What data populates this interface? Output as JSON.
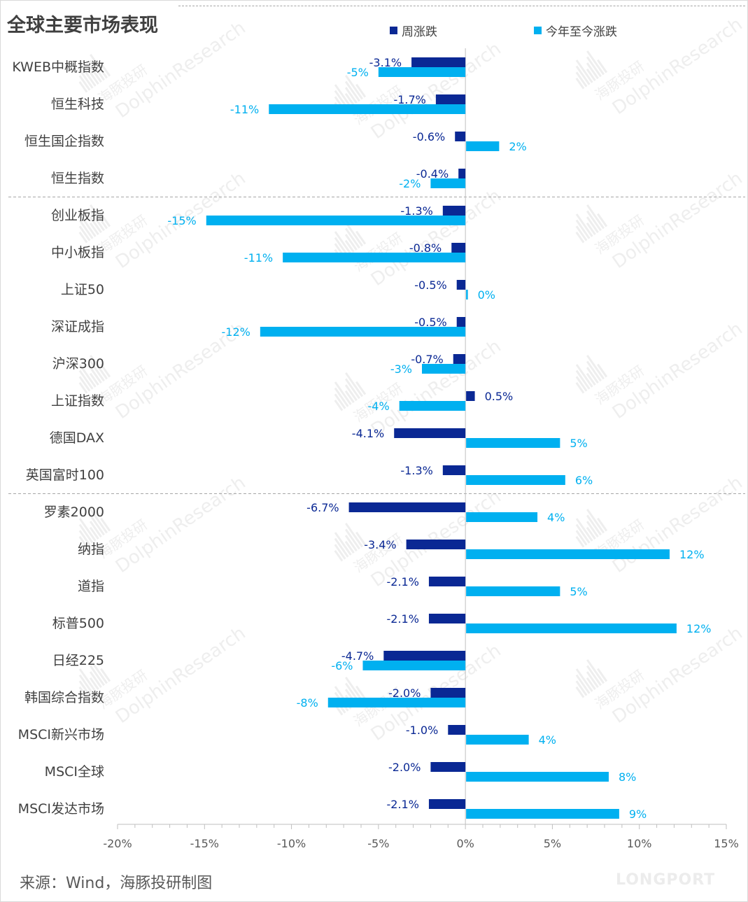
{
  "page_title": "全球主要市场表现",
  "source_note": "来源：Wind，海豚投研制图",
  "watermark": {
    "text_cn": "海豚投研",
    "text_en": "DolphinResearch",
    "brand": "LONGPORT"
  },
  "colors": {
    "weekly": "#0a2894",
    "ytd": "#00b0f0",
    "category_text": "#404040",
    "tick_text": "#595959",
    "axis": "#bfbfbf"
  },
  "chart_data": {
    "type": "bar",
    "orientation": "horizontal",
    "title": "全球主要市场表现",
    "categories": [
      "KWEB中概指数",
      "恒生科技",
      "恒生国企指数",
      "恒生指数",
      "创业板指",
      "中小板指",
      "上证50",
      "深证成指",
      "沪深300",
      "上证指数",
      "德国DAX",
      "英国富时100",
      "罗素2000",
      "纳指",
      "道指",
      "标普500",
      "日经225",
      "韩国综合指数",
      "MSCI新兴市场",
      "MSCI全球",
      "MSCI发达市场"
    ],
    "series": [
      {
        "name": "周涨跌",
        "color": "#0a2894",
        "values": [
          -3.1,
          -1.7,
          -0.6,
          -0.4,
          -1.3,
          -0.8,
          -0.5,
          -0.5,
          -0.7,
          0.5,
          -4.1,
          -1.3,
          -6.7,
          -3.4,
          -2.1,
          -2.1,
          -4.7,
          -2.0,
          -1.0,
          -2.0,
          -2.1
        ],
        "labels": [
          "-3.1%",
          "-1.7%",
          "-0.6%",
          "-0.4%",
          "-1.3%",
          "-0.8%",
          "-0.5%",
          "-0.5%",
          "-0.7%",
          "0.5%",
          "-4.1%",
          "-1.3%",
          "-6.7%",
          "-3.4%",
          "-2.1%",
          "-2.1%",
          "-4.7%",
          "-2.0%",
          "-1.0%",
          "-2.0%",
          "-2.1%"
        ]
      },
      {
        "name": "今年至今涨跌",
        "color": "#00b0f0",
        "values": [
          -5,
          -11.3,
          1.9,
          -2,
          -14.9,
          -10.5,
          0.1,
          -11.8,
          -2.5,
          -3.8,
          5.4,
          5.7,
          4.1,
          11.7,
          5.4,
          12.1,
          -5.9,
          -7.9,
          3.6,
          8.2,
          8.8
        ],
        "labels": [
          "-5%",
          "-11%",
          "2%",
          "-2%",
          "-15%",
          "-11%",
          "0%",
          "-12%",
          "-3%",
          "-4%",
          "5%",
          "6%",
          "4%",
          "12%",
          "5%",
          "12%",
          "-6%",
          "-8%",
          "4%",
          "8%",
          "9%"
        ]
      }
    ],
    "xlim": [
      -20,
      15
    ],
    "xticks": [
      -20,
      -15,
      -10,
      -5,
      0,
      5,
      10,
      15
    ],
    "xtick_labels": [
      "-20%",
      "-15%",
      "-10%",
      "-5%",
      "0%",
      "5%",
      "10%",
      "15%"
    ],
    "group_separators_after": [
      "恒生指数",
      "英国富时100"
    ],
    "legend": "top",
    "grid": false
  }
}
